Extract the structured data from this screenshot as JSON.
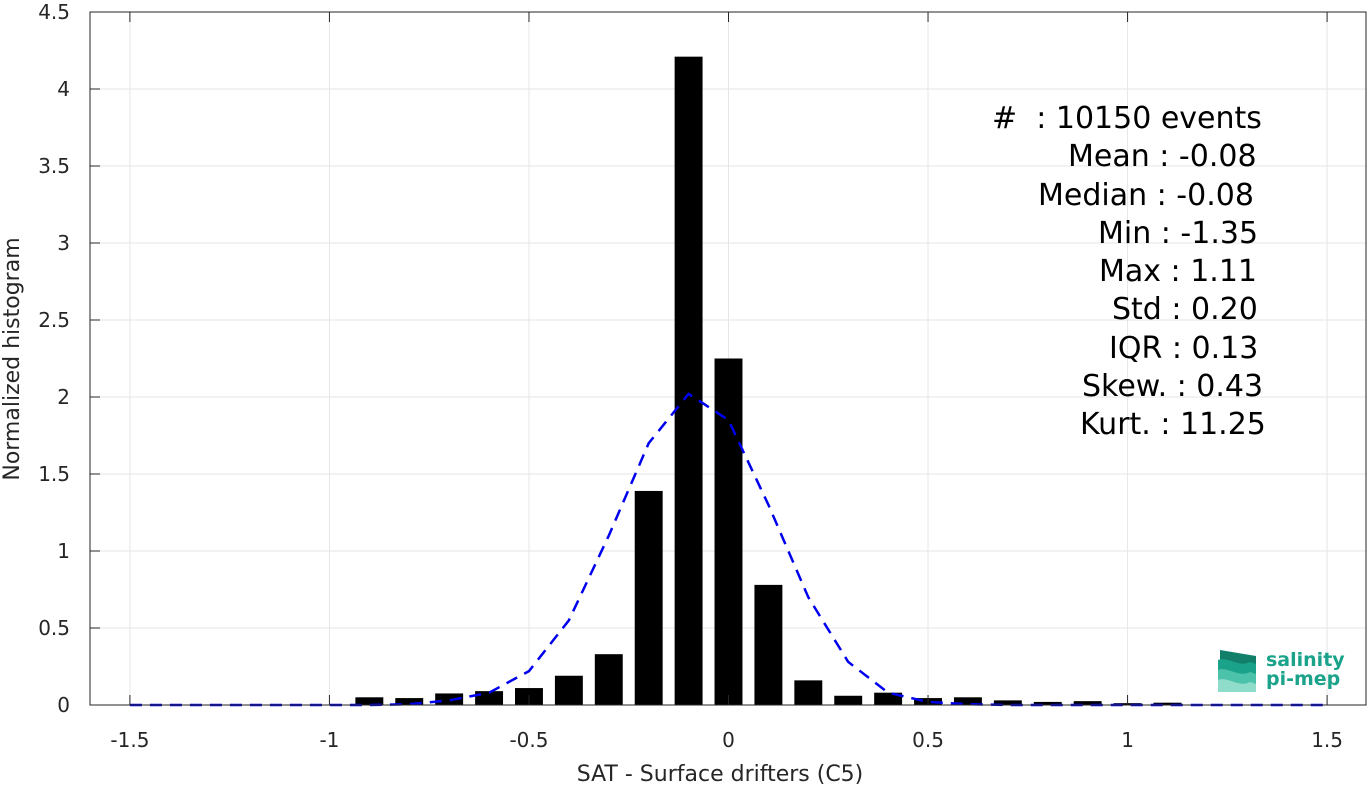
{
  "chart_data": {
    "type": "bar",
    "xlabel": "SAT - Surface drifters (C5)",
    "ylabel": "Normalized histogram",
    "xlim": [
      -1.6,
      1.6
    ],
    "ylim": [
      0,
      4.5
    ],
    "x_ticks": [
      -1.5,
      -1,
      -0.5,
      0,
      0.5,
      1,
      1.5
    ],
    "x_tick_labels": [
      "-1.5",
      "-1",
      "-0.5",
      "0",
      "0.5",
      "1",
      "1.5"
    ],
    "y_ticks": [
      0,
      0.5,
      1,
      1.5,
      2,
      2.5,
      3,
      3.5,
      4,
      4.5
    ],
    "y_tick_labels": [
      "0",
      "0.5",
      "1",
      "1.5",
      "2",
      "2.5",
      "3",
      "3.5",
      "4",
      "4.5"
    ],
    "grid": true,
    "bar_color": "#000000",
    "bin_width": 0.1,
    "bar_width": 0.07,
    "series": [
      {
        "type": "bar",
        "x": [
          -0.9,
          -0.8,
          -0.7,
          -0.6,
          -0.5,
          -0.4,
          -0.3,
          -0.2,
          -0.1,
          0.0,
          0.1,
          0.2,
          0.3,
          0.4,
          0.5,
          0.6,
          0.7,
          0.8,
          0.9,
          1.0,
          1.1
        ],
        "values": [
          0.05,
          0.045,
          0.075,
          0.09,
          0.11,
          0.19,
          0.33,
          1.39,
          4.21,
          2.25,
          0.78,
          0.16,
          0.06,
          0.08,
          0.045,
          0.05,
          0.03,
          0.02,
          0.025,
          0.012,
          0.015
        ]
      },
      {
        "type": "line",
        "style": "dashed",
        "color": "#0000ee",
        "x": [
          -1.5,
          -1.4,
          -1.3,
          -1.2,
          -1.1,
          -1.0,
          -0.9,
          -0.8,
          -0.7,
          -0.6,
          -0.5,
          -0.4,
          -0.3,
          -0.2,
          -0.1,
          0.0,
          0.1,
          0.2,
          0.3,
          0.4,
          0.5,
          0.6,
          0.7,
          0.8,
          0.9,
          1.0,
          1.1,
          1.2,
          1.3,
          1.4,
          1.5
        ],
        "values": [
          0,
          0,
          0,
          0,
          0,
          0,
          0,
          0.005,
          0.03,
          0.08,
          0.22,
          0.55,
          1.1,
          1.7,
          2.02,
          1.85,
          1.3,
          0.7,
          0.28,
          0.08,
          0.02,
          0.005,
          0,
          0,
          0,
          0,
          0,
          0,
          0,
          0,
          0
        ]
      }
    ]
  },
  "stats": [
    "#  : 10150 events",
    "Mean : -0.08",
    "Median : -0.08",
    "Min : -1.35",
    "Max : 1.11",
    "Std : 0.20",
    "IQR : 0.13",
    "Skew. : 0.43",
    "Kurt. : 11.25"
  ],
  "logo": {
    "line1": "salinity",
    "line2": "pi-mep",
    "color": "#1aa38a"
  }
}
